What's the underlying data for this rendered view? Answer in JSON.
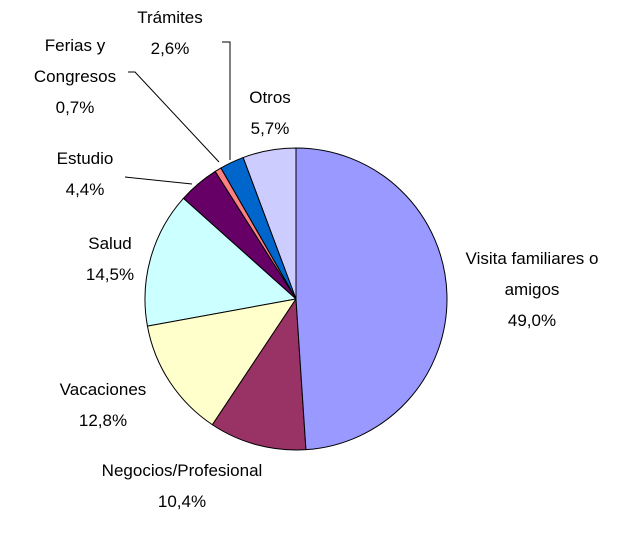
{
  "chart_data": {
    "type": "pie",
    "categories": [
      "Visita familiares o amigos",
      "Negocios/Profesional",
      "Vacaciones",
      "Salud",
      "Estudio",
      "Ferias y Congresos",
      "Trámites",
      "Otros"
    ],
    "values": [
      49.0,
      10.4,
      12.8,
      14.5,
      4.4,
      0.7,
      2.6,
      5.7
    ],
    "value_labels": [
      "49,0%",
      "10,4%",
      "12,8%",
      "14,5%",
      "4,4%",
      "0,7%",
      "2,6%",
      "5,7%"
    ],
    "colors": [
      "#9999ff",
      "#993366",
      "#ffffcc",
      "#ccffff",
      "#660066",
      "#ff8080",
      "#0066cc",
      "#ccccff"
    ]
  }
}
